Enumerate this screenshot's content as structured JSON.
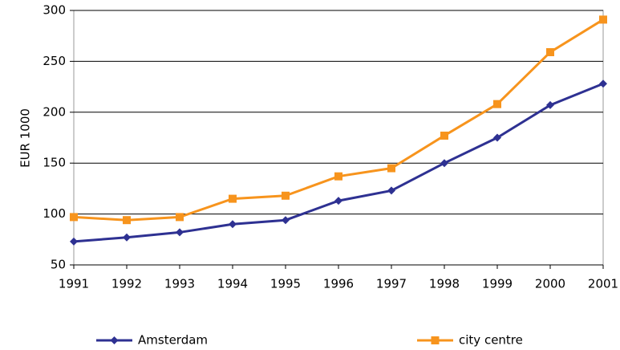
{
  "chart_data": {
    "type": "line",
    "y_label": "EUR 1000",
    "x": [
      1991,
      1992,
      1993,
      1994,
      1995,
      1996,
      1997,
      1998,
      1999,
      2000,
      2001
    ],
    "xlim": [
      1991,
      2001
    ],
    "xticks": [
      1991,
      1992,
      1993,
      1994,
      1995,
      1996,
      1997,
      1998,
      1999,
      2000,
      2001
    ],
    "ylim": [
      50,
      300
    ],
    "yticks": [
      50,
      100,
      150,
      200,
      250,
      300
    ],
    "grid": true,
    "legend": "bottom",
    "series": [
      {
        "name": "Amsterdam",
        "color": "#2e3192",
        "marker": "diamond",
        "values": [
          73,
          77,
          82,
          90,
          94,
          113,
          123,
          150,
          175,
          207,
          228
        ]
      },
      {
        "name": "city centre",
        "color": "#f7941d",
        "marker": "square",
        "values": [
          97,
          94,
          97,
          115,
          118,
          137,
          145,
          177,
          208,
          259,
          291
        ]
      }
    ]
  }
}
